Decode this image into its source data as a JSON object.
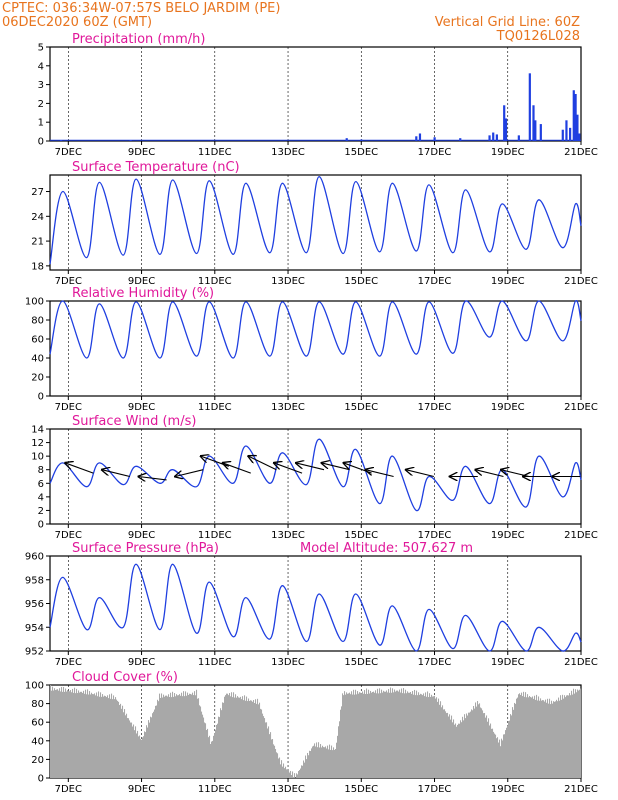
{
  "header": {
    "line1": "CPTEC:   036:34W-07:57S   BELO JARDIM (PE)",
    "line2": "06DEC2020 60Z (GMT)",
    "vgrid": "Vertical Grid Line: 60Z",
    "code": "TQ0126L028"
  },
  "colors": {
    "header": "#e8741e",
    "title": "#e0189a",
    "line": "#1f3fe0",
    "cloud": "#a8a8a8",
    "arrow": "#000000"
  },
  "x_axis": {
    "labels": [
      "7DEC",
      "9DEC",
      "11DEC",
      "13DEC",
      "15DEC",
      "17DEC",
      "19DEC",
      "21DEC"
    ],
    "label_days": [
      7,
      9,
      11,
      13,
      15,
      17,
      19,
      21
    ],
    "range_days": [
      6.5,
      21
    ]
  },
  "chart_data": [
    {
      "type": "bar",
      "title": "Precipitation (mm/h)",
      "ylim": [
        0,
        5
      ],
      "yticks": [
        "0",
        "1",
        "2",
        "3",
        "4",
        "5"
      ],
      "spikes": [
        {
          "day": 6.8,
          "value": 0.05
        },
        {
          "day": 8.7,
          "value": 0.05
        },
        {
          "day": 14.6,
          "value": 0.15
        },
        {
          "day": 15.0,
          "value": 0.08
        },
        {
          "day": 16.5,
          "value": 0.25
        },
        {
          "day": 16.6,
          "value": 0.4
        },
        {
          "day": 17.0,
          "value": 0.2
        },
        {
          "day": 17.7,
          "value": 0.15
        },
        {
          "day": 18.5,
          "value": 0.3
        },
        {
          "day": 18.6,
          "value": 0.45
        },
        {
          "day": 18.7,
          "value": 0.35
        },
        {
          "day": 18.9,
          "value": 1.9
        },
        {
          "day": 18.95,
          "value": 1.2
        },
        {
          "day": 19.3,
          "value": 0.3
        },
        {
          "day": 19.6,
          "value": 3.6
        },
        {
          "day": 19.7,
          "value": 1.9
        },
        {
          "day": 19.75,
          "value": 1.1
        },
        {
          "day": 19.9,
          "value": 0.9
        },
        {
          "day": 20.5,
          "value": 0.6
        },
        {
          "day": 20.6,
          "value": 1.1
        },
        {
          "day": 20.7,
          "value": 0.7
        },
        {
          "day": 20.8,
          "value": 2.7
        },
        {
          "day": 20.85,
          "value": 2.5
        },
        {
          "day": 20.9,
          "value": 1.4
        },
        {
          "day": 20.95,
          "value": 0.4
        }
      ]
    },
    {
      "type": "line",
      "title": "Surface Temperature (nC)",
      "ylim": [
        17.5,
        29
      ],
      "yticks": [
        "18",
        "21",
        "24",
        "27"
      ],
      "ytick_values": [
        18,
        21,
        24,
        27
      ],
      "minima": [
        18.2,
        19.0,
        19.3,
        19.4,
        19.5,
        19.4,
        19.6,
        19.6,
        19.5,
        19.7,
        19.8,
        19.6,
        19.7,
        20.0,
        20.2
      ],
      "maxima": [
        27.0,
        28.1,
        28.5,
        28.4,
        28.3,
        28.0,
        28.0,
        28.8,
        28.2,
        28.0,
        27.8,
        27.2,
        25.5,
        26.0,
        25.5
      ]
    },
    {
      "type": "line",
      "title": "Relative Humidity (%)",
      "ylim": [
        0,
        100
      ],
      "yticks": [
        "0",
        "20",
        "40",
        "60",
        "80",
        "100"
      ],
      "ytick_values": [
        0,
        20,
        40,
        60,
        80,
        100
      ],
      "minima": [
        44,
        40,
        40,
        40,
        42,
        40,
        42,
        42,
        44,
        42,
        44,
        45,
        62,
        58,
        58
      ],
      "maxima": [
        100,
        97,
        99,
        99,
        99,
        99,
        99,
        99,
        99,
        99,
        99,
        100,
        100,
        100,
        100
      ]
    },
    {
      "type": "line",
      "title": "Surface Wind (m/s)",
      "ylim": [
        0,
        14
      ],
      "yticks": [
        "0",
        "2",
        "4",
        "6",
        "8",
        "10",
        "12",
        "14"
      ],
      "ytick_values": [
        0,
        2,
        4,
        6,
        8,
        10,
        12,
        14
      ],
      "minima": [
        6.0,
        5.5,
        5.8,
        6.0,
        5.5,
        6.0,
        6.0,
        5.8,
        5.5,
        3.0,
        2.0,
        3.5,
        3.0,
        2.5,
        4.0
      ],
      "maxima": [
        9.0,
        9.0,
        8.5,
        8.0,
        10.0,
        11.5,
        10.5,
        12.5,
        11.0,
        10.0,
        7.0,
        8.5,
        8.0,
        10.0,
        9.0
      ],
      "arrows": [
        {
          "day": 7.3,
          "from": 9,
          "to": 7.5
        },
        {
          "day": 8.3,
          "from": 8,
          "to": 7
        },
        {
          "day": 9.3,
          "from": 7,
          "to": 6.5
        },
        {
          "day": 10.3,
          "from": 7,
          "to": 8
        },
        {
          "day": 11.0,
          "from": 10,
          "to": 8.5
        },
        {
          "day": 11.6,
          "from": 9,
          "to": 7.5
        },
        {
          "day": 12.3,
          "from": 10,
          "to": 8
        },
        {
          "day": 13.0,
          "from": 9,
          "to": 7.5
        },
        {
          "day": 13.6,
          "from": 9,
          "to": 8
        },
        {
          "day": 14.3,
          "from": 9,
          "to": 8
        },
        {
          "day": 14.9,
          "from": 9,
          "to": 7.5
        },
        {
          "day": 15.5,
          "from": 8,
          "to": 7
        },
        {
          "day": 16.6,
          "from": 8,
          "to": 7
        },
        {
          "day": 17.8,
          "from": 7,
          "to": 7
        },
        {
          "day": 18.5,
          "from": 8,
          "to": 7
        },
        {
          "day": 19.2,
          "from": 8,
          "to": 7
        },
        {
          "day": 19.8,
          "from": 7,
          "to": 7
        },
        {
          "day": 20.6,
          "from": 7,
          "to": 7
        }
      ]
    },
    {
      "type": "line",
      "title": "Surface Pressure (hPa)",
      "annotation": "Model Altitude: 507.627 m",
      "ylim": [
        952,
        960
      ],
      "yticks": [
        "952",
        "954",
        "956",
        "958",
        "960"
      ],
      "ytick_values": [
        952,
        954,
        956,
        958,
        960
      ],
      "minima": [
        954.0,
        953.8,
        954.0,
        953.8,
        953.5,
        953.2,
        953.0,
        952.8,
        952.8,
        952.5,
        952.0,
        952.2,
        952.0,
        952.0,
        952.0
      ],
      "maxima": [
        958.2,
        956.5,
        959.3,
        959.3,
        957.8,
        956.5,
        957.5,
        956.8,
        956.8,
        955.8,
        955.5,
        955.0,
        954.5,
        954.0,
        953.5
      ]
    },
    {
      "type": "area",
      "title": "Cloud Cover (%)",
      "ylim": [
        0,
        100
      ],
      "yticks": [
        "0",
        "20",
        "40",
        "60",
        "80",
        "100"
      ],
      "ytick_values": [
        0,
        20,
        40,
        60,
        80,
        100
      ],
      "profile": [
        {
          "day": 6.5,
          "value": 100
        },
        {
          "day": 7.5,
          "value": 96
        },
        {
          "day": 8.3,
          "value": 90
        },
        {
          "day": 9.0,
          "value": 45
        },
        {
          "day": 9.5,
          "value": 92
        },
        {
          "day": 10.5,
          "value": 95
        },
        {
          "day": 10.9,
          "value": 40
        },
        {
          "day": 11.3,
          "value": 95
        },
        {
          "day": 12.2,
          "value": 85
        },
        {
          "day": 12.8,
          "value": 20
        },
        {
          "day": 13.2,
          "value": 5
        },
        {
          "day": 13.7,
          "value": 40
        },
        {
          "day": 14.3,
          "value": 35
        },
        {
          "day": 14.5,
          "value": 95
        },
        {
          "day": 16.0,
          "value": 98
        },
        {
          "day": 17.0,
          "value": 92
        },
        {
          "day": 17.6,
          "value": 60
        },
        {
          "day": 18.2,
          "value": 85
        },
        {
          "day": 18.8,
          "value": 40
        },
        {
          "day": 19.3,
          "value": 95
        },
        {
          "day": 20.2,
          "value": 85
        },
        {
          "day": 21.0,
          "value": 100
        }
      ]
    }
  ]
}
